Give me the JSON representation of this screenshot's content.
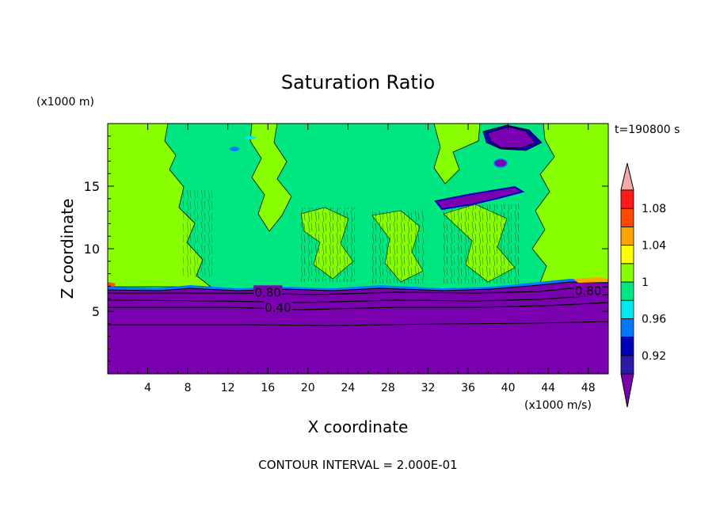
{
  "chart_data": {
    "type": "heatmap",
    "title": "Saturation Ratio",
    "xlabel": "X coordinate",
    "ylabel": "Z coordinate",
    "x_unit": "(x1000 m/s)",
    "y_unit": "(x1000 m)",
    "time_label": "t=190800 s",
    "footer": "CONTOUR INTERVAL = 2.000E-01",
    "xlim": [
      0,
      50
    ],
    "ylim": [
      0,
      20
    ],
    "x_ticks": [
      4,
      8,
      12,
      16,
      20,
      24,
      28,
      32,
      36,
      40,
      44,
      48
    ],
    "y_ticks": [
      5,
      10,
      15
    ],
    "grid": false,
    "contour_labels": [
      {
        "text": "0.80",
        "x": 16,
        "z": 6.5
      },
      {
        "text": "0.40",
        "x": 17,
        "z": 5.3
      },
      {
        "text": "0.80",
        "x": 48,
        "z": 6.6
      }
    ],
    "colorbar": {
      "labels": [
        "1.08",
        "1.04",
        "1",
        "0.96",
        "0.92"
      ],
      "levels": [
        0.9,
        0.92,
        0.94,
        0.96,
        0.98,
        1.0,
        1.02,
        1.04,
        1.06,
        1.08,
        1.1
      ],
      "colors": [
        "#7a00b0",
        "#2a1aa6",
        "#0000b8",
        "#0078ff",
        "#00e8f0",
        "#00e680",
        "#88ff00",
        "#ffff00",
        "#ffa500",
        "#ff4a00",
        "#ff1a1a",
        "#f5a8a8"
      ]
    },
    "regions": {
      "dry_layer_top_z": 6.7,
      "moist_layer_value": "0.98-1.02"
    }
  }
}
